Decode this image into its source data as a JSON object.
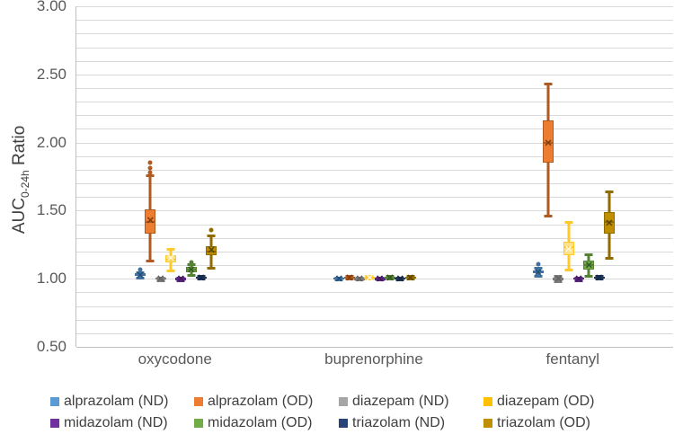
{
  "axis": {
    "y_title_main": "AUC",
    "y_title_sub": "0-24h",
    "y_title_rest": " Ratio",
    "y_ticks": [
      "3.00",
      "2.50",
      "2.00",
      "1.50",
      "1.00",
      "0.50"
    ]
  },
  "chart_data": {
    "type": "boxplot",
    "title": "",
    "xlabel": "",
    "ylabel": "AUC 0-24h Ratio",
    "ylim": [
      0.5,
      3.0
    ],
    "y_major_unit": 0.5,
    "y_grid_unit": 0.1,
    "grid": true,
    "legend_position": "bottom",
    "categories": [
      "oxycodone",
      "buprenorphine",
      "fentanyl"
    ],
    "series": [
      {
        "name": "alprazolam (ND)",
        "id": "alprazolam-nd",
        "color": "#5B9BD5",
        "fill": "#5B9BD5",
        "stroke": "#41719C",
        "mark": "#1F4E79",
        "boxes": [
          {
            "lo": 1.01,
            "q1": 1.02,
            "med": 1.03,
            "q3": 1.04,
            "hi": 1.05,
            "mean": 1.03,
            "outliers": [
              1.07
            ]
          },
          {
            "lo": 0.995,
            "q1": 1.0,
            "med": 1.0,
            "q3": 1.005,
            "hi": 1.01,
            "mean": 1.0,
            "outliers": []
          },
          {
            "lo": 1.02,
            "q1": 1.04,
            "med": 1.05,
            "q3": 1.06,
            "hi": 1.08,
            "mean": 1.05,
            "outliers": [
              1.11
            ]
          }
        ]
      },
      {
        "name": "alprazolam (OD)",
        "id": "alprazolam-od",
        "color": "#ED7D31",
        "fill": "#ED7D31",
        "stroke": "#AE5A21",
        "mark": "#843C0C",
        "boxes": [
          {
            "lo": 1.13,
            "q1": 1.33,
            "med": 1.42,
            "q3": 1.51,
            "hi": 1.76,
            "mean": 1.43,
            "outliers": [
              1.78,
              1.81,
              1.85
            ]
          },
          {
            "lo": 1.0,
            "q1": 1.005,
            "med": 1.01,
            "q3": 1.015,
            "hi": 1.02,
            "mean": 1.01,
            "outliers": []
          },
          {
            "lo": 1.46,
            "q1": 1.85,
            "med": 2.0,
            "q3": 2.16,
            "hi": 2.43,
            "mean": 2.0,
            "outliers": []
          }
        ]
      },
      {
        "name": "diazepam (ND)",
        "id": "diazepam-nd",
        "color": "#A5A5A5",
        "fill": "#A5A5A5",
        "stroke": "#7B7B7B",
        "mark": "#636363",
        "boxes": [
          {
            "lo": 0.99,
            "q1": 1.0,
            "med": 1.0,
            "q3": 1.005,
            "hi": 1.01,
            "mean": 1.0,
            "outliers": []
          },
          {
            "lo": 0.995,
            "q1": 1.0,
            "med": 1.0,
            "q3": 1.0,
            "hi": 1.005,
            "mean": 1.0,
            "outliers": []
          },
          {
            "lo": 0.98,
            "q1": 0.99,
            "med": 1.0,
            "q3": 1.01,
            "hi": 1.02,
            "mean": 1.0,
            "outliers": []
          }
        ]
      },
      {
        "name": "diazepam (OD)",
        "id": "diazepam-od",
        "color": "#FFC000",
        "fill": "#FFE285",
        "stroke": "#FFC92C",
        "mark": "#FFF6DC",
        "boxes": [
          {
            "lo": 1.06,
            "q1": 1.12,
            "med": 1.14,
            "q3": 1.17,
            "hi": 1.22,
            "mean": 1.15,
            "outliers": []
          },
          {
            "lo": 1.0,
            "q1": 1.005,
            "med": 1.01,
            "q3": 1.015,
            "hi": 1.02,
            "mean": 1.01,
            "outliers": []
          },
          {
            "lo": 1.07,
            "q1": 1.17,
            "med": 1.23,
            "q3": 1.27,
            "hi": 1.42,
            "mean": 1.22,
            "outliers": []
          }
        ]
      },
      {
        "name": "midazolam (ND)",
        "id": "midazolam-nd",
        "color": "#7030A0",
        "fill": "#7030A0",
        "stroke": "#5A2682",
        "mark": "#3F1A5B",
        "boxes": [
          {
            "lo": 0.99,
            "q1": 1.0,
            "med": 1.0,
            "q3": 1.0,
            "hi": 1.005,
            "mean": 1.0,
            "outliers": []
          },
          {
            "lo": 0.995,
            "q1": 1.0,
            "med": 1.0,
            "q3": 1.0,
            "hi": 1.005,
            "mean": 1.0,
            "outliers": []
          },
          {
            "lo": 0.99,
            "q1": 1.0,
            "med": 1.0,
            "q3": 1.005,
            "hi": 1.01,
            "mean": 1.0,
            "outliers": []
          }
        ]
      },
      {
        "name": "midazolam (OD)",
        "id": "midazolam-od",
        "color": "#70AD47",
        "fill": "#70AD47",
        "stroke": "#548235",
        "mark": "#375623",
        "boxes": [
          {
            "lo": 1.03,
            "q1": 1.05,
            "med": 1.07,
            "q3": 1.09,
            "hi": 1.11,
            "mean": 1.07,
            "outliers": [
              1.12
            ]
          },
          {
            "lo": 1.0,
            "q1": 1.005,
            "med": 1.01,
            "q3": 1.015,
            "hi": 1.02,
            "mean": 1.01,
            "outliers": []
          },
          {
            "lo": 1.02,
            "q1": 1.07,
            "med": 1.1,
            "q3": 1.13,
            "hi": 1.18,
            "mean": 1.1,
            "outliers": []
          }
        ]
      },
      {
        "name": "triazolam (ND)",
        "id": "triazolam-nd",
        "color": "#264478",
        "fill": "#264478",
        "stroke": "#1D3557",
        "mark": "#152744",
        "boxes": [
          {
            "lo": 1.0,
            "q1": 1.005,
            "med": 1.01,
            "q3": 1.015,
            "hi": 1.02,
            "mean": 1.01,
            "outliers": []
          },
          {
            "lo": 0.995,
            "q1": 1.0,
            "med": 1.0,
            "q3": 1.005,
            "hi": 1.01,
            "mean": 1.0,
            "outliers": []
          },
          {
            "lo": 1.0,
            "q1": 1.005,
            "med": 1.01,
            "q3": 1.015,
            "hi": 1.02,
            "mean": 1.01,
            "outliers": []
          }
        ]
      },
      {
        "name": "triazolam (OD)",
        "id": "triazolam-od",
        "color": "#BF8F00",
        "fill": "#BF8F00",
        "stroke": "#8F6B00",
        "mark": "#5C4500",
        "boxes": [
          {
            "lo": 1.08,
            "q1": 1.17,
            "med": 1.2,
            "q3": 1.24,
            "hi": 1.32,
            "mean": 1.21,
            "outliers": [
              1.36
            ]
          },
          {
            "lo": 1.0,
            "q1": 1.005,
            "med": 1.01,
            "q3": 1.015,
            "hi": 1.02,
            "mean": 1.01,
            "outliers": []
          },
          {
            "lo": 1.15,
            "q1": 1.33,
            "med": 1.42,
            "q3": 1.49,
            "hi": 1.64,
            "mean": 1.41,
            "outliers": []
          }
        ]
      }
    ]
  },
  "legend": {
    "rows": [
      [
        "alprazolam (ND)",
        "alprazolam (OD)",
        "diazepam (ND)",
        "diazepam (OD)"
      ],
      [
        "midazolam (ND)",
        "midazolam (OD)",
        "triazolam (ND)",
        "triazolam (OD)"
      ]
    ]
  }
}
